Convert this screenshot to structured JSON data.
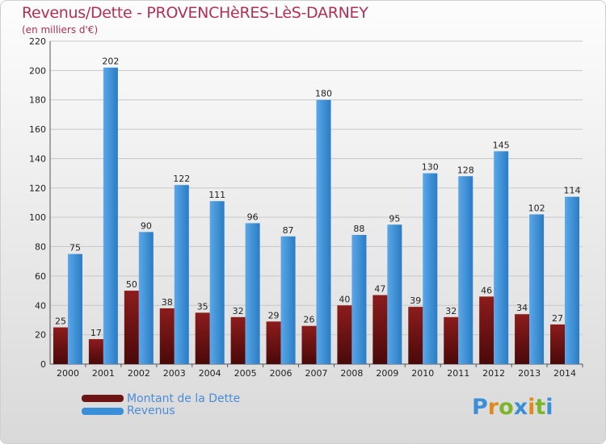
{
  "header": {
    "title": "Revenus/Dette - PROVENCHèRES-LèS-DARNEY",
    "subtitle": "(en milliers d'€)"
  },
  "legend": {
    "position": "bottom-left",
    "items": [
      {
        "label": "Montant de la Dette",
        "color": "#6e1414"
      },
      {
        "label": "Revenus",
        "color": "#3a8fd6"
      }
    ]
  },
  "logo": {
    "text": "Proxiti"
  },
  "chart_data": {
    "type": "bar",
    "categories": [
      "2000",
      "2001",
      "2002",
      "2003",
      "2004",
      "2005",
      "2006",
      "2007",
      "2008",
      "2009",
      "2010",
      "2011",
      "2012",
      "2013",
      "2014"
    ],
    "series": [
      {
        "name": "Montant de la Dette",
        "color": "#6e1414",
        "values": [
          25,
          17,
          50,
          38,
          35,
          32,
          29,
          26,
          40,
          47,
          39,
          32,
          46,
          34,
          27
        ]
      },
      {
        "name": "Revenus",
        "color": "#3a8fd6",
        "values": [
          75,
          202,
          90,
          122,
          111,
          96,
          87,
          180,
          88,
          95,
          130,
          128,
          145,
          102,
          114
        ]
      }
    ],
    "ylim": [
      0,
      220
    ],
    "yticks": [
      0,
      20,
      40,
      60,
      80,
      100,
      120,
      140,
      160,
      180,
      200,
      220
    ],
    "grid": true,
    "data_labels": true
  }
}
